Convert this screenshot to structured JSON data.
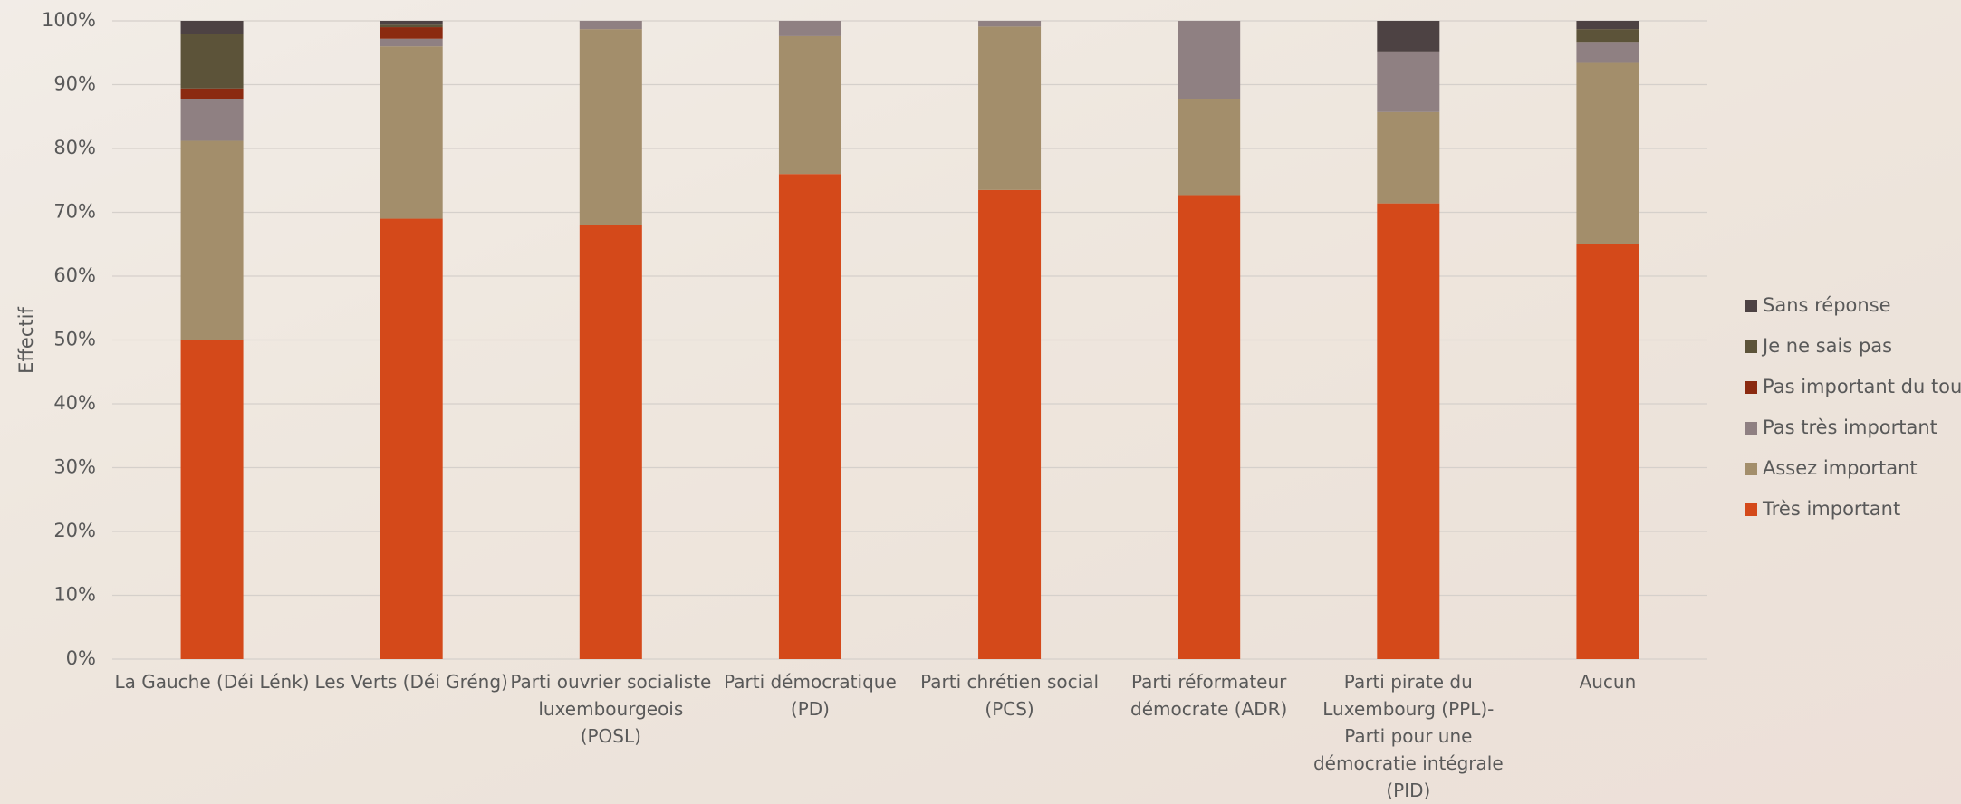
{
  "chart_data": {
    "type": "stacked_bar",
    "y_axis_label": "Effectif",
    "categories": [
      "La Gauche (Déi Lénk)",
      "Les Verts (Déi Gréng)",
      "Parti ouvrier socialiste luxembourgeois (POSL)",
      "Parti démocratique (PD)",
      "Parti chrétien social (PCS)",
      "Parti réformateur démocrate (ADR)",
      "Parti pirate du Luxembourg (PPL)- Parti pour une démocratie intégrale (PID)",
      "Aucun"
    ],
    "series": [
      {
        "name": "Très important",
        "color": "#d4491a",
        "values": [
          50,
          69,
          68,
          76,
          73.5,
          72.7,
          71.4,
          65
        ]
      },
      {
        "name": "Assez important",
        "color": "#a38e6b",
        "values": [
          31.2,
          27,
          30.7,
          21.6,
          25.6,
          15.1,
          14.3,
          28.4
        ]
      },
      {
        "name": "Pas très important",
        "color": "#8f8082",
        "values": [
          6.6,
          1.2,
          1.3,
          2.4,
          0.9,
          12.2,
          9.5,
          3.3
        ]
      },
      {
        "name": "Pas important du tout",
        "color": "#8b2a10",
        "values": [
          1.6,
          1.8,
          0,
          0,
          0,
          0,
          0,
          0
        ]
      },
      {
        "name": "Je ne sais pas",
        "color": "#5c5339",
        "values": [
          8.6,
          0.4,
          0,
          0,
          0,
          0,
          0,
          2.0
        ]
      },
      {
        "name": "Sans réponse",
        "color": "#4d4243",
        "values": [
          2.0,
          0.6,
          0,
          0,
          0,
          0,
          4.8,
          1.3
        ]
      }
    ],
    "ylim": [
      0,
      100
    ],
    "yticks": [
      {
        "value": 0,
        "label": "0%"
      },
      {
        "value": 10,
        "label": "10%"
      },
      {
        "value": 20,
        "label": "20%"
      },
      {
        "value": 30,
        "label": "30%"
      },
      {
        "value": 40,
        "label": "40%"
      },
      {
        "value": 50,
        "label": "50%"
      },
      {
        "value": 60,
        "label": "60%"
      },
      {
        "value": 70,
        "label": "70%"
      },
      {
        "value": 80,
        "label": "80%"
      },
      {
        "value": 90,
        "label": "90%"
      },
      {
        "value": 100,
        "label": "100%"
      }
    ],
    "grid": true,
    "legend": "right"
  }
}
